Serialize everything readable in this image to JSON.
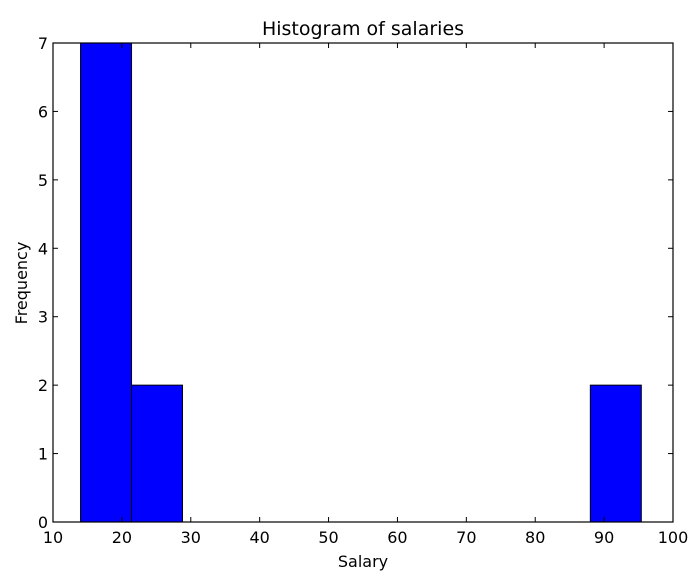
{
  "chart_data": {
    "type": "bar",
    "title": "Histogram of salaries",
    "xlabel": "Salary",
    "ylabel": "Frequency",
    "xlim": [
      10,
      100
    ],
    "ylim": [
      0,
      7
    ],
    "grid": false,
    "x_ticks": [
      10,
      20,
      30,
      40,
      50,
      60,
      70,
      80,
      90,
      100
    ],
    "y_ticks": [
      0,
      1,
      2,
      3,
      4,
      5,
      6,
      7
    ],
    "bins": [
      {
        "start": 14.0,
        "end": 21.4,
        "count": 7
      },
      {
        "start": 21.4,
        "end": 28.8,
        "count": 2
      },
      {
        "start": 28.8,
        "end": 36.2,
        "count": 0
      },
      {
        "start": 36.2,
        "end": 43.6,
        "count": 0
      },
      {
        "start": 43.6,
        "end": 51.0,
        "count": 0
      },
      {
        "start": 51.0,
        "end": 58.4,
        "count": 0
      },
      {
        "start": 58.4,
        "end": 65.8,
        "count": 0
      },
      {
        "start": 65.8,
        "end": 73.2,
        "count": 0
      },
      {
        "start": 73.2,
        "end": 80.6,
        "count": 0
      },
      {
        "start": 80.6,
        "end": 88.0,
        "count": 0
      },
      {
        "start": 88.0,
        "end": 95.4,
        "count": 2
      }
    ],
    "bar_color": "#0000ff",
    "edge_color": "#000000"
  }
}
